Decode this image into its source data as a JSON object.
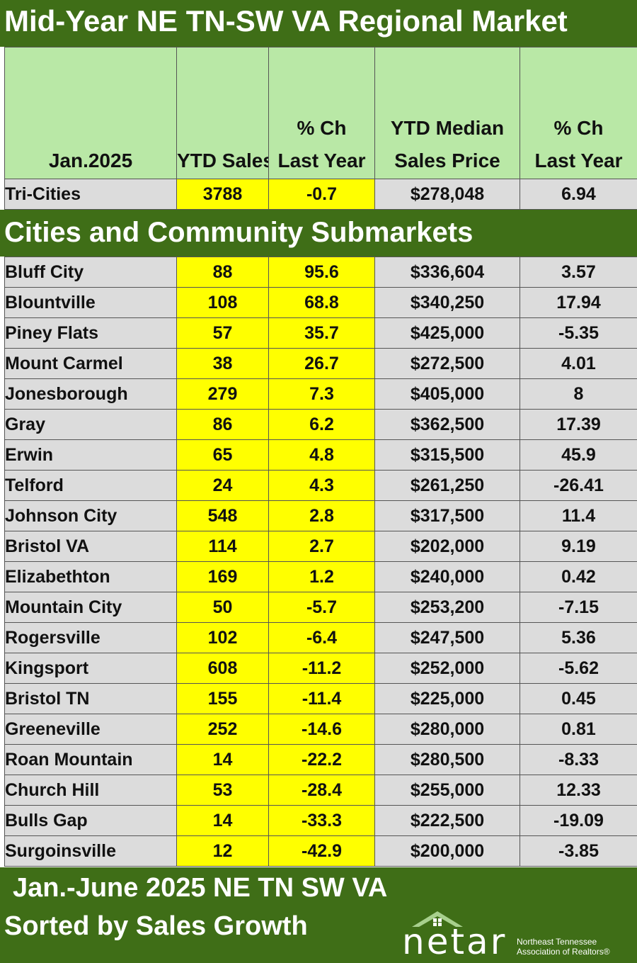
{
  "title": "Mid-Year NE TN-SW VA Regional Market",
  "header": {
    "col0": "Jan.2025",
    "col1": "YTD Sales",
    "col2_line1": "% Ch",
    "col2_line2": "Last Year",
    "col3_line1": "YTD Median",
    "col3_line2": "Sales Price",
    "col4_line1": "% Ch",
    "col4_line2": "Last Year"
  },
  "summary": {
    "city": "Tri-Cities",
    "sales": "3788",
    "pct": "-0.7",
    "price": "$278,048",
    "price_pct": "6.94"
  },
  "section_title": "Cities and Community Submarkets",
  "rows": [
    {
      "city": "Bluff City",
      "sales": "88",
      "pct": "95.6",
      "price": "$336,604",
      "price_pct": "3.57"
    },
    {
      "city": "Blountville",
      "sales": "108",
      "pct": "68.8",
      "price": "$340,250",
      "price_pct": "17.94"
    },
    {
      "city": "Piney Flats",
      "sales": "57",
      "pct": "35.7",
      "price": "$425,000",
      "price_pct": "-5.35"
    },
    {
      "city": "Mount Carmel",
      "sales": "38",
      "pct": "26.7",
      "price": "$272,500",
      "price_pct": "4.01"
    },
    {
      "city": "Jonesborough",
      "sales": "279",
      "pct": "7.3",
      "price": "$405,000",
      "price_pct": "8"
    },
    {
      "city": "Gray",
      "sales": "86",
      "pct": "6.2",
      "price": "$362,500",
      "price_pct": "17.39"
    },
    {
      "city": "Erwin",
      "sales": "65",
      "pct": "4.8",
      "price": "$315,500",
      "price_pct": "45.9"
    },
    {
      "city": "Telford",
      "sales": "24",
      "pct": "4.3",
      "price": "$261,250",
      "price_pct": "-26.41"
    },
    {
      "city": "Johnson City",
      "sales": "548",
      "pct": "2.8",
      "price": "$317,500",
      "price_pct": "11.4"
    },
    {
      "city": "Bristol VA",
      "sales": "114",
      "pct": "2.7",
      "price": "$202,000",
      "price_pct": "9.19"
    },
    {
      "city": "Elizabethton",
      "sales": "169",
      "pct": "1.2",
      "price": "$240,000",
      "price_pct": "0.42"
    },
    {
      "city": "Mountain City",
      "sales": "50",
      "pct": "-5.7",
      "price": "$253,200",
      "price_pct": "-7.15"
    },
    {
      "city": "Rogersville",
      "sales": "102",
      "pct": "-6.4",
      "price": "$247,500",
      "price_pct": "5.36"
    },
    {
      "city": "Kingsport",
      "sales": "608",
      "pct": "-11.2",
      "price": "$252,000",
      "price_pct": "-5.62"
    },
    {
      "city": "Bristol TN",
      "sales": "155",
      "pct": "-11.4",
      "price": "$225,000",
      "price_pct": "0.45"
    },
    {
      "city": "Greeneville",
      "sales": "252",
      "pct": "-14.6",
      "price": "$280,000",
      "price_pct": "0.81"
    },
    {
      "city": "Roan Mountain",
      "sales": "14",
      "pct": "-22.2",
      "price": "$280,500",
      "price_pct": "-8.33"
    },
    {
      "city": "Church Hill",
      "sales": "53",
      "pct": "-28.4",
      "price": "$255,000",
      "price_pct": "12.33"
    },
    {
      "city": "Bulls Gap",
      "sales": "14",
      "pct": "-33.3",
      "price": "$222,500",
      "price_pct": "-19.09"
    },
    {
      "city": "Surgoinsville",
      "sales": "12",
      "pct": "-42.9",
      "price": "$200,000",
      "price_pct": "-3.85"
    }
  ],
  "footer": {
    "line1": "Jan.-June 2025 NE TN SW VA",
    "line2": "Sorted by Sales Growth",
    "logo_word": "netar",
    "logo_sub1": "Northeast Tennessee",
    "logo_sub2": "Association of Realtors®"
  },
  "colors": {
    "green": "#3f6e17",
    "header_green": "#b9e8a6",
    "yellow": "#ffff00",
    "gray": "#dcdcdc"
  }
}
